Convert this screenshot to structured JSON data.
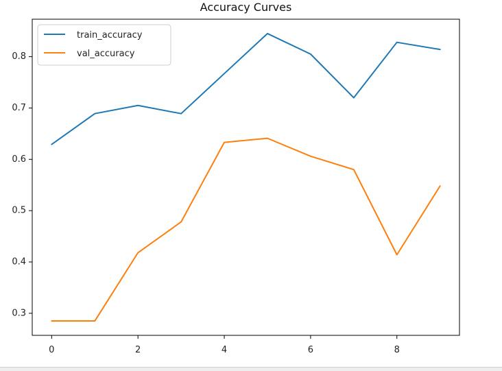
{
  "chart_data": {
    "type": "line",
    "title": "Accuracy Curves",
    "xlabel": "",
    "ylabel": "",
    "x": [
      0,
      1,
      2,
      3,
      4,
      5,
      6,
      7,
      8,
      9
    ],
    "series": [
      {
        "name": "train_accuracy",
        "color": "#1f77b4",
        "values": [
          0.629,
          0.689,
          0.705,
          0.689,
          0.767,
          0.845,
          0.805,
          0.72,
          0.828,
          0.814
        ]
      },
      {
        "name": "val_accuracy",
        "color": "#ff7f0e",
        "values": [
          0.285,
          0.285,
          0.418,
          0.478,
          0.633,
          0.641,
          0.606,
          0.58,
          0.414,
          0.548
        ]
      }
    ],
    "xlim": [
      -0.45,
      9.45
    ],
    "ylim": [
      0.257,
      0.873
    ],
    "xticks": [
      0,
      2,
      4,
      6,
      8
    ],
    "yticks": [
      0.3,
      0.4,
      0.5,
      0.6,
      0.7,
      0.8
    ],
    "xtick_labels": [
      "0",
      "2",
      "4",
      "6",
      "8"
    ],
    "ytick_labels": [
      "0.3",
      "0.4",
      "0.5",
      "0.6",
      "0.7",
      "0.8"
    ],
    "grid": false,
    "legend_position": "upper-left"
  }
}
